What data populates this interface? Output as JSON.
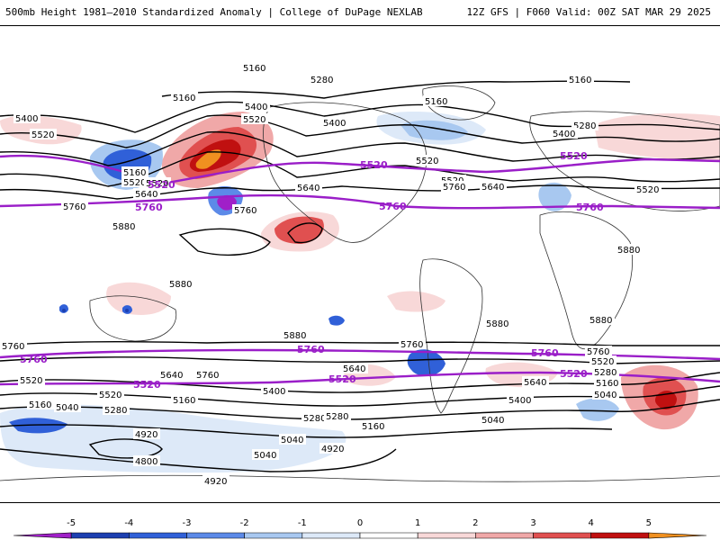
{
  "header": {
    "title_left": "500mb Height 1981–2010 Standardized Anomaly | College of DuPage NEXLAB",
    "title_right": "12Z GFS | F060 Valid: 00Z SAT MAR 29 2025"
  },
  "colors": {
    "reference_line": "#9a1ec8",
    "contour": "#000000",
    "coastline": "#333333"
  },
  "contour_labels": [
    "5160",
    "5280",
    "5160",
    "5160",
    "5400",
    "5520",
    "5400",
    "5520",
    "5160",
    "5400",
    "5520",
    "5280",
    "5400",
    "5160",
    "5520",
    "5640",
    "5520",
    "5640",
    "5760",
    "5520",
    "5640",
    "5760",
    "5520",
    "5760",
    "5880",
    "5880",
    "5880",
    "5880",
    "5880",
    "5880",
    "5760",
    "5760",
    "5640",
    "5760",
    "5640",
    "5400",
    "5520",
    "5280",
    "5160",
    "5040",
    "5160",
    "5280",
    "5040",
    "5040",
    "4920",
    "4800",
    "4920",
    "4920",
    "5040",
    "5160",
    "5280",
    "5400",
    "5520",
    "5520",
    "5640",
    "5760",
    "5160",
    "5040",
    "5280"
  ],
  "reference_labels": [
    "5520",
    "5520",
    "5520",
    "5760",
    "5760",
    "5760",
    "5760",
    "5760",
    "5520",
    "5520",
    "5520",
    "5760"
  ],
  "colorbar": {
    "ticks": [
      "-5",
      "-4",
      "-3",
      "-2",
      "-1",
      "0",
      "1",
      "2",
      "3",
      "4",
      "5"
    ],
    "colors": [
      "#a020c8",
      "#1c3fb0",
      "#3060d8",
      "#5c8ae8",
      "#a8c8f0",
      "#dde9f8",
      "#ffffff",
      "#f8d8d8",
      "#f0a8a8",
      "#e05050",
      "#c01010",
      "#f09020"
    ]
  }
}
